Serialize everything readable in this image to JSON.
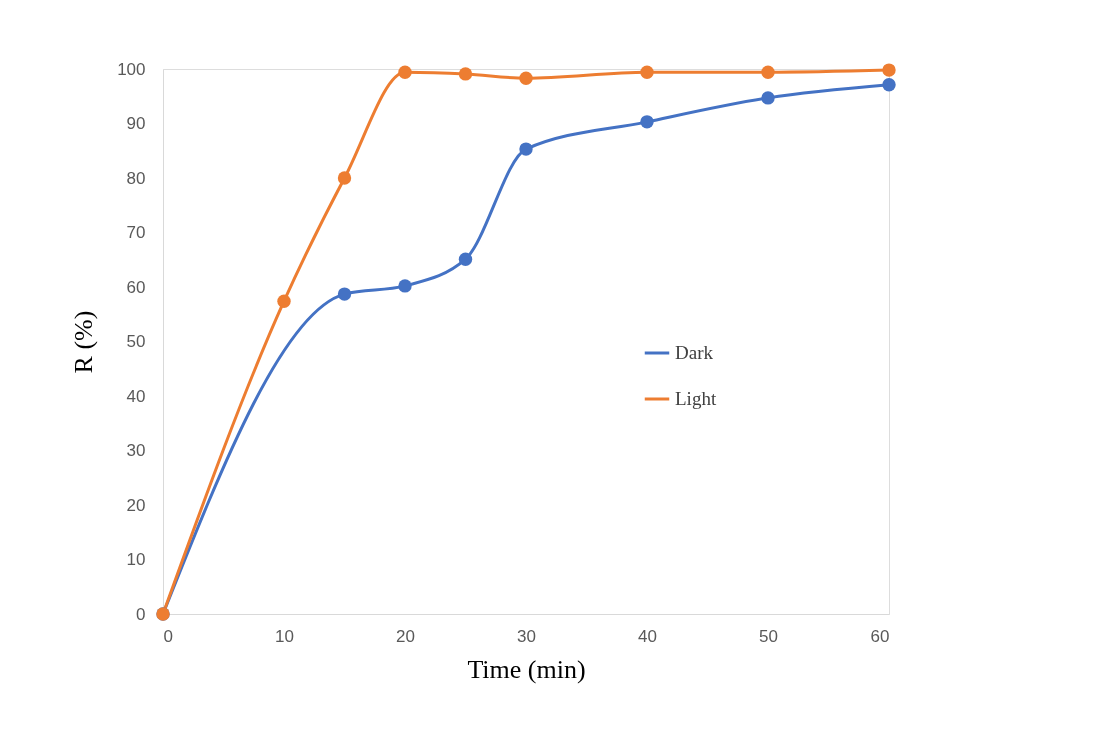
{
  "chart_data": {
    "type": "line",
    "xlabel": "Time (min)",
    "ylabel": "R (%)",
    "xlim": [
      0,
      60
    ],
    "xticks": [
      0,
      10,
      20,
      30,
      40,
      50,
      60
    ],
    "ylim": [
      0,
      100
    ],
    "yticks": [
      0,
      10,
      20,
      30,
      40,
      50,
      60,
      70,
      80,
      90,
      100
    ],
    "grid": false,
    "legend": "right",
    "marker": "circle",
    "line_style": "solid",
    "series": [
      {
        "name": "Dark",
        "color": "#4472c4",
        "x": [
          0,
          15,
          20,
          25,
          30,
          40,
          50,
          60
        ],
        "values": [
          0,
          58.7,
          60.2,
          65.1,
          85.3,
          90.3,
          94.7,
          97.1
        ]
      },
      {
        "name": "Light",
        "color": "#ed7d31",
        "x": [
          0,
          10,
          15,
          20,
          25,
          30,
          40,
          50,
          60
        ],
        "values": [
          0,
          57.4,
          80.0,
          99.4,
          99.1,
          98.3,
          99.4,
          99.4,
          99.8
        ]
      }
    ]
  }
}
